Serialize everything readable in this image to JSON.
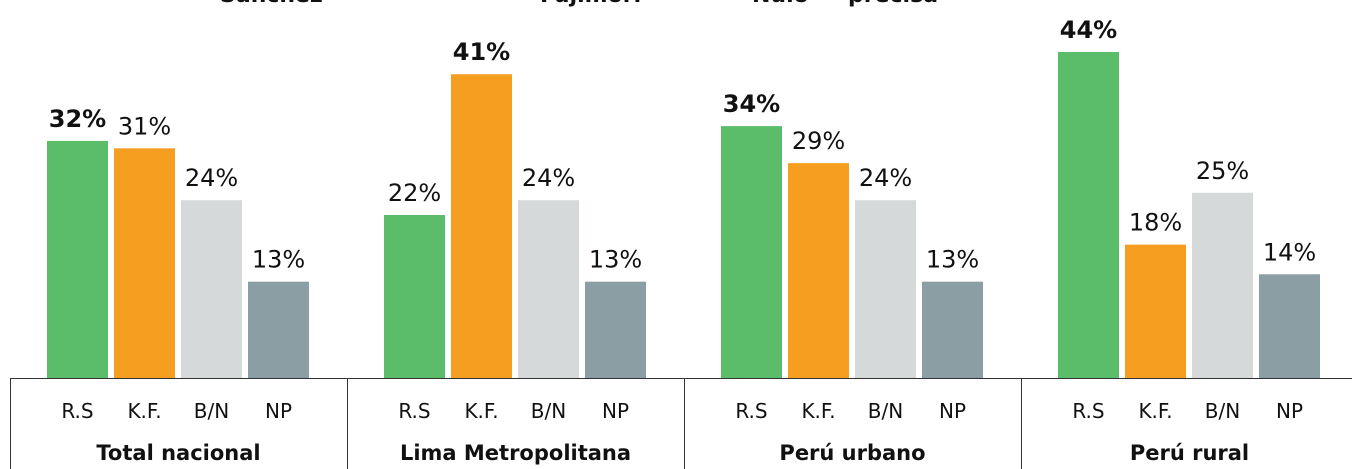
{
  "chart_data": {
    "type": "bar",
    "legend_texts": [
      "Sánchez",
      "Fujimori",
      "Nulo",
      "precisa"
    ],
    "categories": [
      "Total nacional",
      "Lima Metropolitana",
      "Perú urbano",
      "Perú rural"
    ],
    "series": [
      {
        "name": "R.S",
        "color": "#5bbd6a",
        "values": [
          32,
          22,
          34,
          44
        ],
        "value_labels": [
          "32%",
          "22%",
          "34%",
          "44%"
        ]
      },
      {
        "name": "K.F.",
        "color": "#f59e1f",
        "values": [
          31,
          41,
          29,
          18
        ],
        "value_labels": [
          "31%",
          "41%",
          "29%",
          "18%"
        ]
      },
      {
        "name": "B/N",
        "color": "#d5d9da",
        "values": [
          24,
          24,
          24,
          25
        ],
        "value_labels": [
          "24%",
          "24%",
          "24%",
          "25%"
        ]
      },
      {
        "name": "NP",
        "color": "#8a9ea4",
        "values": [
          13,
          13,
          13,
          14
        ],
        "value_labels": [
          "13%",
          "13%",
          "13%",
          "14%"
        ]
      }
    ]
  }
}
